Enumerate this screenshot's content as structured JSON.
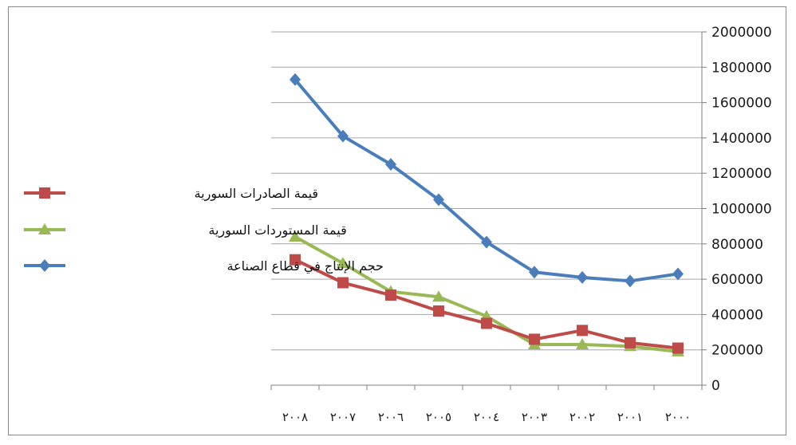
{
  "chart_data": {
    "type": "line",
    "categories": [
      "٢٠٠٨",
      "٢٠٠٧",
      "٢٠٠٦",
      "٢٠٠٥",
      "٢٠٠٤",
      "٢٠٠٣",
      "٢٠٠٢",
      "٢٠٠١",
      "٢٠٠٠"
    ],
    "series": [
      {
        "name": "قيمة الصادرات السورية",
        "color": "#be4b48",
        "marker": "square",
        "values": [
          710000,
          580000,
          510000,
          420000,
          350000,
          260000,
          310000,
          240000,
          210000
        ]
      },
      {
        "name": "قيمة المستوردات السورية",
        "color": "#98b954",
        "marker": "triangle",
        "values": [
          840000,
          690000,
          530000,
          500000,
          390000,
          230000,
          230000,
          220000,
          190000
        ]
      },
      {
        "name": "حجم الإنتاج في قطاع الصناعة",
        "color": "#4a7ebb",
        "marker": "diamond",
        "values": [
          1730000,
          1410000,
          1250000,
          1050000,
          810000,
          640000,
          610000,
          590000,
          630000
        ]
      }
    ],
    "y_ticks": [
      "2000000",
      "1800000",
      "1600000",
      "1400000",
      "1200000",
      "1000000",
      "800000",
      "600000",
      "400000",
      "200000",
      "0"
    ],
    "ylim": [
      0,
      2000000
    ],
    "y_axis_side": "right",
    "grid": true,
    "legend_position": "left"
  }
}
